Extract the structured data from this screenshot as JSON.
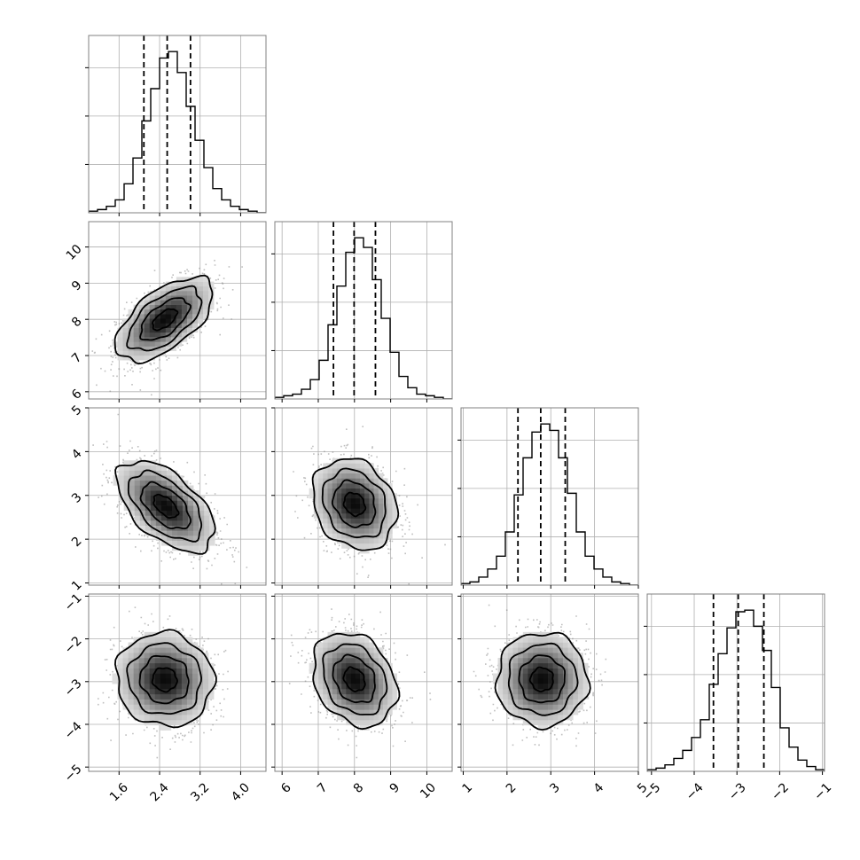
{
  "chart_data": {
    "type": "corner",
    "parameters": [
      {
        "index": 0,
        "range": [
          1.0,
          4.5
        ],
        "ticks": [
          1.6,
          2.4,
          3.2,
          4.0
        ],
        "tick_labels": [
          "1.6",
          "2.4",
          "3.2",
          "4.0"
        ],
        "quantiles": [
          2.09,
          2.55,
          3.01
        ],
        "hist": {
          "x_start": 1.0,
          "bin_width": 0.175,
          "counts": [
            1,
            2,
            4,
            8,
            18,
            34,
            57,
            77,
            96,
            100,
            87,
            66,
            45,
            28,
            15,
            8,
            4,
            2,
            1,
            0
          ]
        },
        "hist_ticks": [
          30,
          60,
          90
        ]
      },
      {
        "index": 1,
        "range": [
          5.8,
          10.7
        ],
        "ticks": [
          6,
          7,
          8,
          9,
          10
        ],
        "tick_labels": [
          "6",
          "7",
          "8",
          "9",
          "10"
        ],
        "quantiles": [
          7.42,
          7.99,
          8.58
        ],
        "hist": {
          "x_start": 5.8,
          "bin_width": 0.245,
          "counts": [
            1,
            2,
            3,
            6,
            12,
            24,
            46,
            70,
            91,
            100,
            94,
            74,
            50,
            29,
            14,
            7,
            3,
            2,
            1,
            0
          ]
        },
        "hist_ticks": [
          30,
          60,
          90
        ]
      },
      {
        "index": 2,
        "range": [
          0.95,
          5.0
        ],
        "ticks": [
          1,
          2,
          3,
          4,
          5
        ],
        "tick_labels": [
          "1",
          "2",
          "3",
          "4",
          "5"
        ],
        "quantiles": [
          2.25,
          2.77,
          3.33
        ],
        "hist": {
          "x_start": 0.95,
          "bin_width": 0.2025,
          "counts": [
            1,
            2,
            5,
            10,
            18,
            33,
            56,
            79,
            95,
            100,
            96,
            79,
            57,
            33,
            18,
            10,
            5,
            2,
            1,
            0
          ]
        },
        "hist_ticks": [
          30,
          60,
          90
        ]
      },
      {
        "index": 3,
        "range": [
          -5.1,
          -0.95
        ],
        "ticks": [
          -5,
          -4,
          -3,
          -2,
          -1
        ],
        "tick_labels": [
          "−5",
          "−4",
          "−3",
          "−2",
          "−1"
        ],
        "quantiles": [
          -3.55,
          -2.97,
          -2.37
        ],
        "hist": {
          "x_start": -5.1,
          "bin_width": 0.2075,
          "counts": [
            1,
            2,
            4,
            8,
            13,
            21,
            32,
            54,
            73,
            89,
            99,
            100,
            90,
            75,
            52,
            27,
            15,
            7,
            3,
            1
          ]
        },
        "hist_ticks": [
          30,
          60,
          90
        ]
      }
    ],
    "pairs": [
      {
        "row": 1,
        "col": 0,
        "center": [
          2.5,
          8.0
        ],
        "sigma": [
          0.48,
          0.58
        ],
        "corr": 0.6
      },
      {
        "row": 2,
        "col": 0,
        "center": [
          2.52,
          2.75
        ],
        "sigma": [
          0.48,
          0.52
        ],
        "corr": -0.55
      },
      {
        "row": 2,
        "col": 1,
        "center": [
          8.0,
          2.8
        ],
        "sigma": [
          0.58,
          0.52
        ],
        "corr": -0.2
      },
      {
        "row": 3,
        "col": 0,
        "center": [
          2.5,
          -2.95
        ],
        "sigma": [
          0.48,
          0.55
        ],
        "corr": -0.05
      },
      {
        "row": 3,
        "col": 1,
        "center": [
          8.0,
          -2.95
        ],
        "sigma": [
          0.58,
          0.55
        ],
        "corr": -0.25
      },
      {
        "row": 3,
        "col": 2,
        "center": [
          2.8,
          -2.95
        ],
        "sigma": [
          0.52,
          0.55
        ],
        "corr": 0.0
      }
    ],
    "contour_levels_sigma": [
      0.5,
      1.0,
      1.5,
      2.0
    ],
    "grid": true,
    "colors": {
      "line": "#000000",
      "grid": "#b0b0b0",
      "frame": "#808080",
      "points": "#8a8a8a"
    }
  }
}
